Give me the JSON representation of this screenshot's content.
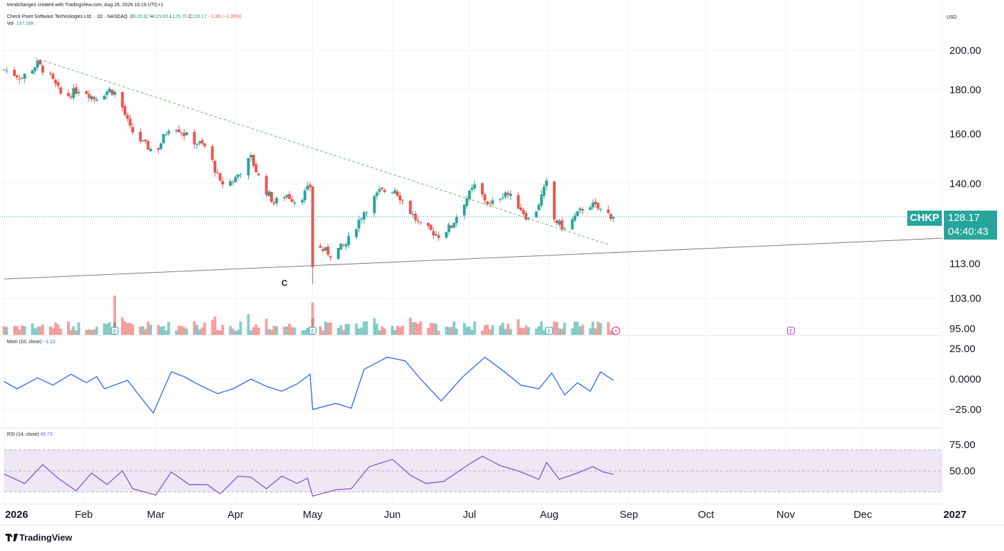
{
  "header": {
    "credit": "trendchanges created with TradingView.com, Aug 26, 2026 16:19 UTC+1",
    "symbol_line": "Check Point Software Technologies Ltd. · 1D · NASDAQ",
    "ohlc": {
      "O": "126.82",
      "H": "129.65",
      "L": "126.70",
      "C": "128.17",
      "change": "−1.36 (−1.05%)"
    },
    "vol_label": "Vol",
    "vol_value": "197.58K",
    "currency": "USD"
  },
  "price_tag": {
    "symbol": "CHKP",
    "price": "128.17",
    "countdown": "04:40:43"
  },
  "indicators": {
    "mom_label": "Mom (10, close)",
    "mom_value": "−1.13",
    "rsi_label": "RSI (14, close)",
    "rsi_value": "46.73"
  },
  "brand": "TradingView",
  "colors": {
    "up": "#26a69a",
    "down": "#ef5350",
    "trendline": "#66bb6a",
    "support": "#787b86",
    "mom": "#2962ff",
    "rsi": "#7e57c2",
    "rsi_band": "#ede7f6"
  },
  "chart_data": [
    {
      "type": "candlestick",
      "title": "Check Point Software Technologies Ltd. · 1D · NASDAQ",
      "yscale": "log",
      "ylim": [
        93,
        218
      ],
      "y_ticks": [
        "200.00",
        "180.00",
        "160.00",
        "140.00",
        "113.00",
        "103.00",
        "95.00"
      ],
      "x_ticks": [
        "2026",
        "Feb",
        "Mar",
        "Apr",
        "May",
        "Jun",
        "Jul",
        "Aug",
        "Sep",
        "Oct",
        "Nov",
        "Dec",
        "2027"
      ],
      "x_range": [
        "2026-01-01",
        "2027-01-01"
      ],
      "close_path": [
        [
          "2026-01-01",
          190
        ],
        [
          "2026-01-08",
          186
        ],
        [
          "2026-01-14",
          193
        ],
        [
          "2026-01-19",
          186
        ],
        [
          "2026-01-24",
          176
        ],
        [
          "2026-01-31",
          181
        ],
        [
          "2026-02-05",
          176
        ],
        [
          "2026-02-11",
          180
        ],
        [
          "2026-02-14",
          178
        ],
        [
          "2026-02-19",
          162
        ],
        [
          "2026-02-24",
          156
        ],
        [
          "2026-03-01",
          152
        ],
        [
          "2026-03-07",
          165
        ],
        [
          "2026-03-14",
          158
        ],
        [
          "2026-03-21",
          154
        ],
        [
          "2026-03-26",
          140
        ],
        [
          "2026-03-31",
          141
        ],
        [
          "2026-04-07",
          150
        ],
        [
          "2026-04-11",
          140
        ],
        [
          "2026-04-16",
          133
        ],
        [
          "2026-04-21",
          136
        ],
        [
          "2026-04-25",
          133
        ],
        [
          "2026-04-30",
          139
        ],
        [
          "2026-05-01",
          119
        ],
        [
          "2026-05-08",
          116
        ],
        [
          "2026-05-14",
          119
        ],
        [
          "2026-05-21",
          130
        ],
        [
          "2026-05-27",
          137
        ],
        [
          "2026-06-02",
          138
        ],
        [
          "2026-06-07",
          131
        ],
        [
          "2026-06-12",
          125
        ],
        [
          "2026-06-19",
          122
        ],
        [
          "2026-06-24",
          125
        ],
        [
          "2026-06-28",
          132
        ],
        [
          "2026-07-03",
          139
        ],
        [
          "2026-07-09",
          132
        ],
        [
          "2026-07-15",
          137
        ],
        [
          "2026-07-21",
          131
        ],
        [
          "2026-07-25",
          126
        ],
        [
          "2026-07-31",
          140
        ],
        [
          "2026-08-02",
          128
        ],
        [
          "2026-08-07",
          124
        ],
        [
          "2026-08-12",
          129
        ],
        [
          "2026-08-16",
          133
        ],
        [
          "2026-08-22",
          130
        ],
        [
          "2026-08-26",
          128.17
        ]
      ],
      "annotations": {
        "downtrend_line": [
          [
            "2026-01-13",
            196
          ],
          [
            "2026-08-24",
            119
          ]
        ],
        "support_line": [
          [
            "2026-01-01",
            108.5
          ],
          [
            "2027-01-01",
            121
          ]
        ],
        "wave_label": {
          "date": "2026-04-20",
          "text": "C"
        },
        "earnings_markers": [
          {
            "date": "2026-02-13",
            "text": "E"
          },
          {
            "date": "2026-05-01",
            "text": "E"
          },
          {
            "date": "2026-08-01",
            "text": "E"
          },
          {
            "date": "2026-11-03",
            "text": "E"
          }
        ],
        "dividend_marker": {
          "date": "2026-08-27",
          "text": "⚡"
        }
      },
      "last_price": 128.17
    },
    {
      "type": "bar",
      "title": "Vol",
      "series": [
        {
          "name": "Vol",
          "last": "197.58K"
        }
      ]
    },
    {
      "type": "line",
      "title": "Mom (10, close)",
      "ylim": [
        -35,
        35
      ],
      "y_ticks": [
        "25.00",
        "0.0000",
        "−25.00"
      ],
      "path": [
        [
          "2026-01-01",
          -2
        ],
        [
          "2026-01-06",
          -8
        ],
        [
          "2026-01-14",
          1
        ],
        [
          "2026-01-20",
          -5
        ],
        [
          "2026-01-27",
          4
        ],
        [
          "2026-02-02",
          -3
        ],
        [
          "2026-02-06",
          2
        ],
        [
          "2026-02-09",
          -8
        ],
        [
          "2026-02-18",
          -1
        ],
        [
          "2026-02-22",
          -12
        ],
        [
          "2026-02-28",
          -28
        ],
        [
          "2026-03-07",
          6
        ],
        [
          "2026-03-12",
          2
        ],
        [
          "2026-03-18",
          -5
        ],
        [
          "2026-03-25",
          -12
        ],
        [
          "2026-03-31",
          -8
        ],
        [
          "2026-04-07",
          0
        ],
        [
          "2026-04-13",
          -6
        ],
        [
          "2026-04-19",
          -10
        ],
        [
          "2026-04-25",
          -4
        ],
        [
          "2026-04-30",
          4
        ],
        [
          "2026-05-01",
          -25
        ],
        [
          "2026-05-10",
          -20
        ],
        [
          "2026-05-16",
          -24
        ],
        [
          "2026-05-21",
          8
        ],
        [
          "2026-05-30",
          18
        ],
        [
          "2026-06-06",
          15
        ],
        [
          "2026-06-12",
          0
        ],
        [
          "2026-06-20",
          -18
        ],
        [
          "2026-06-28",
          1
        ],
        [
          "2026-07-07",
          18
        ],
        [
          "2026-07-14",
          7
        ],
        [
          "2026-07-21",
          -5
        ],
        [
          "2026-07-28",
          -8
        ],
        [
          "2026-08-02",
          5
        ],
        [
          "2026-08-07",
          -13
        ],
        [
          "2026-08-12",
          -3
        ],
        [
          "2026-08-17",
          -10
        ],
        [
          "2026-08-21",
          6
        ],
        [
          "2026-08-26",
          -1.13
        ]
      ]
    },
    {
      "type": "line",
      "title": "RSI (14, close)",
      "ylim": [
        22,
        80
      ],
      "y_ticks": [
        "75.00",
        "50.00"
      ],
      "bands": [
        30,
        50,
        70
      ],
      "path": [
        [
          "2026-01-01",
          47
        ],
        [
          "2026-01-09",
          38
        ],
        [
          "2026-01-16",
          56
        ],
        [
          "2026-01-22",
          43
        ],
        [
          "2026-01-29",
          31
        ],
        [
          "2026-02-04",
          48
        ],
        [
          "2026-02-10",
          37
        ],
        [
          "2026-02-16",
          50
        ],
        [
          "2026-02-20",
          33
        ],
        [
          "2026-03-01",
          27
        ],
        [
          "2026-03-07",
          49
        ],
        [
          "2026-03-14",
          37
        ],
        [
          "2026-03-21",
          37
        ],
        [
          "2026-03-26",
          28
        ],
        [
          "2026-04-02",
          45
        ],
        [
          "2026-04-07",
          44
        ],
        [
          "2026-04-13",
          33
        ],
        [
          "2026-04-19",
          45
        ],
        [
          "2026-04-25",
          38
        ],
        [
          "2026-04-29",
          43
        ],
        [
          "2026-05-01",
          26
        ],
        [
          "2026-05-10",
          32
        ],
        [
          "2026-05-16",
          33
        ],
        [
          "2026-05-23",
          54
        ],
        [
          "2026-06-01",
          61
        ],
        [
          "2026-06-08",
          46
        ],
        [
          "2026-06-14",
          38
        ],
        [
          "2026-06-21",
          40
        ],
        [
          "2026-06-30",
          55
        ],
        [
          "2026-07-06",
          64
        ],
        [
          "2026-07-13",
          55
        ],
        [
          "2026-07-20",
          50
        ],
        [
          "2026-07-28",
          42
        ],
        [
          "2026-07-31",
          58
        ],
        [
          "2026-08-05",
          42
        ],
        [
          "2026-08-12",
          48
        ],
        [
          "2026-08-18",
          54
        ],
        [
          "2026-08-22",
          49
        ],
        [
          "2026-08-26",
          46.73
        ]
      ]
    }
  ]
}
